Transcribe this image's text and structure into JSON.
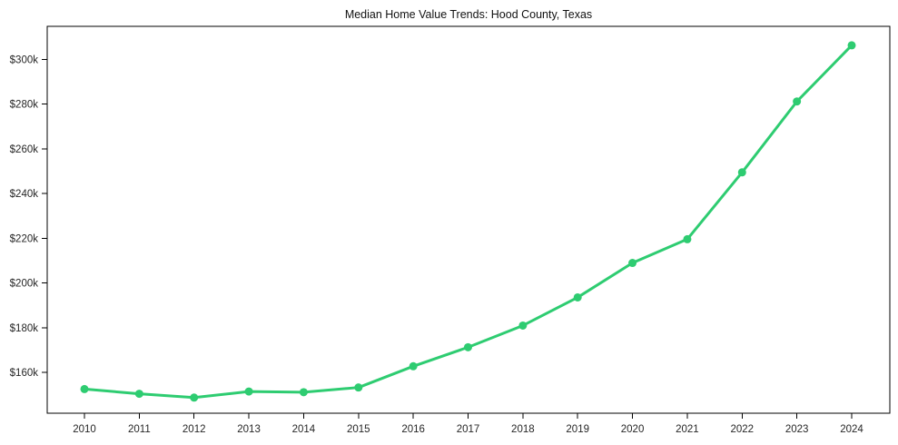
{
  "chart_data": {
    "type": "line",
    "title": "Median Home Value Trends: Hood County, Texas",
    "unit": "USD thousands",
    "x": [
      2010,
      2011,
      2012,
      2013,
      2014,
      2015,
      2016,
      2017,
      2018,
      2019,
      2020,
      2021,
      2022,
      2023,
      2024
    ],
    "x_tick_labels": [
      "2010",
      "2011",
      "2012",
      "2013",
      "2014",
      "2015",
      "2016",
      "2017",
      "2018",
      "2019",
      "2020",
      "2021",
      "2022",
      "2023",
      "2024"
    ],
    "values": [
      152.6,
      150.5,
      148.8,
      151.5,
      151.2,
      153.3,
      162.8,
      171.3,
      181.0,
      193.6,
      209.0,
      219.6,
      249.5,
      281.2,
      306.3
    ],
    "y_tick_values": [
      160,
      180,
      200,
      220,
      240,
      260,
      280,
      300
    ],
    "y_tick_labels": [
      "$160k",
      "$180k",
      "$200k",
      "$220k",
      "$240k",
      "$260k",
      "$280k",
      "$300k"
    ],
    "ylim": [
      141.8,
      314.8
    ],
    "grid": false,
    "legend": null,
    "marker": "circle",
    "line_color": "#2ecc71",
    "axis_color": "#000000",
    "tick_label_color": "#262626",
    "background_color": "#ffffff"
  }
}
